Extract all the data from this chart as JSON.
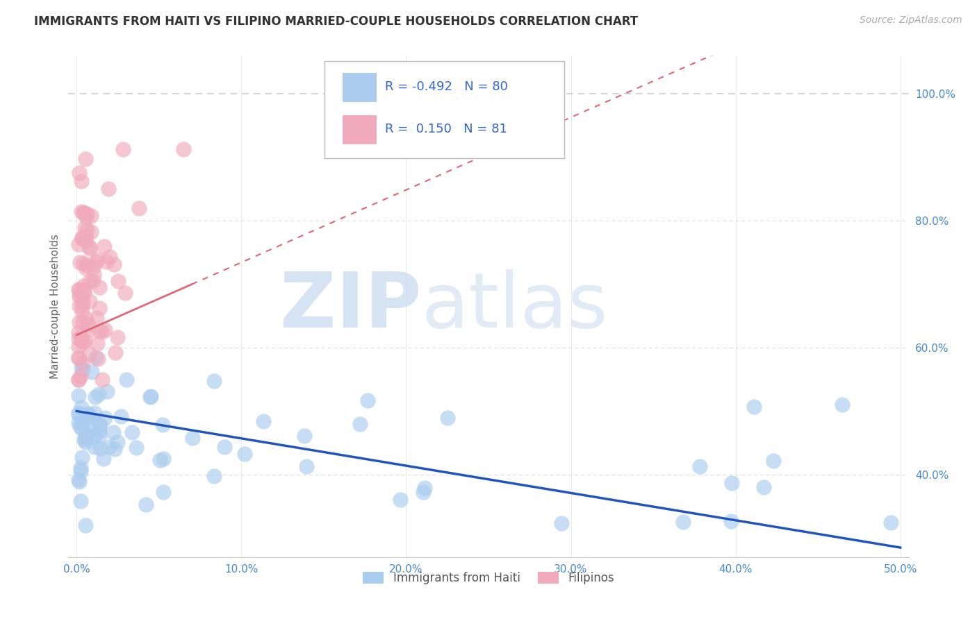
{
  "title": "IMMIGRANTS FROM HAITI VS FILIPINO MARRIED-COUPLE HOUSEHOLDS CORRELATION CHART",
  "source": "Source: ZipAtlas.com",
  "ylabel": "Married-couple Households",
  "legend_label1": "Immigrants from Haiti",
  "legend_label2": "Filipinos",
  "R1": -0.492,
  "N1": 80,
  "R2": 0.15,
  "N2": 81,
  "color1": "#aaccee",
  "color2": "#f0aabb",
  "trendline1_color": "#2255bb",
  "trendline2_color": "#dd6677",
  "dashed_line_color": "#cccccc",
  "xlim": [
    -0.005,
    0.505
  ],
  "ylim": [
    0.27,
    1.06
  ],
  "xtick_vals": [
    0.0,
    0.1,
    0.2,
    0.3,
    0.4,
    0.5
  ],
  "xtick_labels": [
    "0.0%",
    "10.0%",
    "20.0%",
    "30.0%",
    "40.0%",
    "50.0%"
  ],
  "ytick_vals": [
    0.4,
    0.6,
    0.8,
    1.0
  ],
  "ytick_labels": [
    "40.0%",
    "60.0%",
    "80.0%",
    "100.0%"
  ],
  "watermark_zip": "ZIP",
  "watermark_atlas": "atlas",
  "background_color": "#ffffff",
  "title_fontsize": 12,
  "source_fontsize": 10,
  "tick_fontsize": 11,
  "legend_fontsize": 13
}
